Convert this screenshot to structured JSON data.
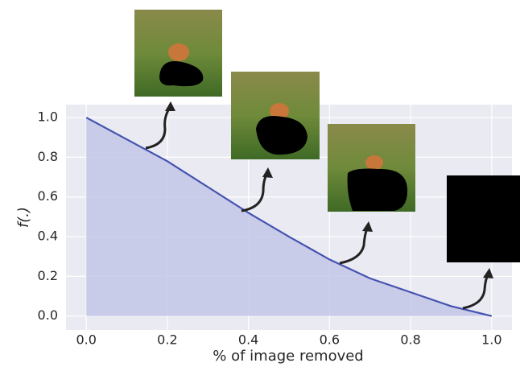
{
  "chart_data": {
    "type": "area",
    "xlabel": "% of image removed",
    "ylabel": "f(.)",
    "x": [
      0,
      0.1,
      0.2,
      0.3,
      0.4,
      0.5,
      0.6,
      0.7,
      0.8,
      0.9,
      1
    ],
    "y": [
      1,
      0.89,
      0.78,
      0.65,
      0.52,
      0.4,
      0.285,
      0.19,
      0.12,
      0.05,
      0
    ],
    "color": "#4453b0",
    "fill_color": "#c3c7e6",
    "xlim": [
      -0.05,
      1.05
    ],
    "ylim": [
      -0.07,
      1.065
    ],
    "xticks": [
      {
        "value": 0,
        "label": "0.0"
      },
      0.2,
      0.4,
      0.6,
      0.8,
      {
        "value": 1,
        "label": "1.0"
      }
    ],
    "yticks": [
      {
        "value": 0,
        "label": "0.0"
      },
      0.2,
      0.4,
      0.6,
      0.8,
      {
        "value": 1,
        "label": "1.0"
      }
    ],
    "grid": true
  }
}
